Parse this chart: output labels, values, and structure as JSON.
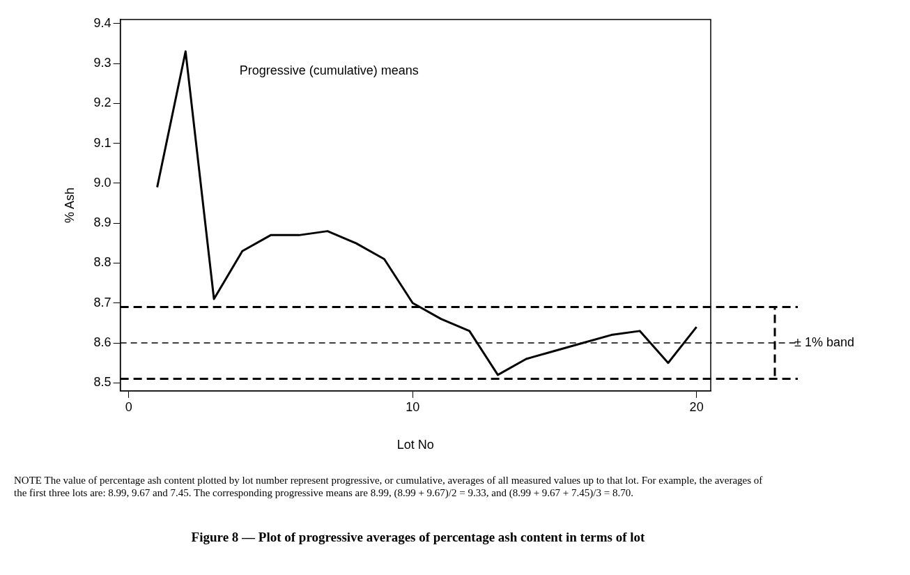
{
  "chart_data": {
    "type": "line",
    "title": "Figure 8 — Plot of progressive averages of percentage ash content in terms of lot",
    "xlabel": "Lot No",
    "ylabel": "% Ash",
    "x": [
      1,
      2,
      3,
      4,
      5,
      6,
      7,
      8,
      9,
      10,
      11,
      12,
      13,
      14,
      15,
      16,
      17,
      18,
      19,
      20
    ],
    "series": [
      {
        "color": "#000000",
        "values": [
          8.99,
          9.33,
          8.71,
          8.83,
          8.87,
          8.87,
          8.88,
          8.85,
          8.81,
          8.7,
          8.66,
          8.63,
          8.52,
          8.56,
          8.58,
          8.6,
          8.62,
          8.63,
          8.55,
          8.64
        ]
      }
    ],
    "xlim": [
      -0.3,
      20.5
    ],
    "xticks": [
      0,
      10,
      20
    ],
    "ylim": [
      8.48,
      9.41
    ],
    "yticks": [
      8.5,
      8.6,
      8.7,
      8.8,
      8.9,
      {
        "value": 9,
        "label": "9.0"
      },
      9.1,
      9.2,
      9.3,
      9.4
    ],
    "ref_lines": [
      {
        "axis": "y",
        "value": 8.69,
        "line_style": "dashed"
      },
      {
        "axis": "y",
        "value": 8.6,
        "line_style": "dashed",
        "label": "± 1% band"
      },
      {
        "axis": "y",
        "value": 8.51,
        "line_style": "dashed"
      }
    ],
    "annotations": [
      "Progressive (cumulative) means",
      "NOTE    The value of percentage ash content plotted by lot number represent progressive, or cumulative, averages of all measured values up to that lot. For example, the averages of the first three lots are: 8.99, 9.67 and 7.45. The corresponding progressive means are 8.99, (8.99 + 9.67)/2 = 9.33, and (8.99 + 9.67 + 7.45)/3 = 8.70."
    ],
    "legend": false,
    "marker": "none",
    "line_style": "solid"
  }
}
